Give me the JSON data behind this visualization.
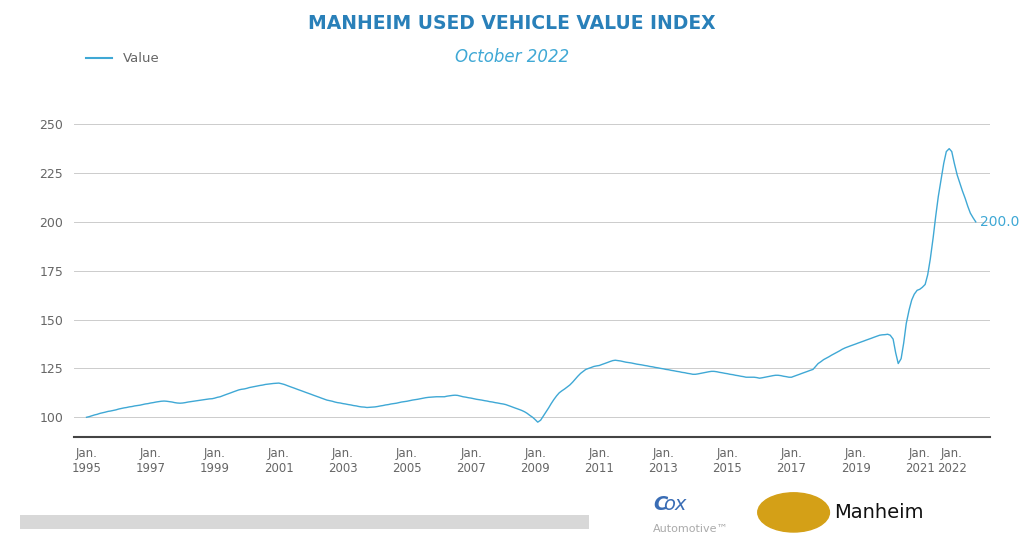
{
  "title": "MANHEIM USED VEHICLE VALUE INDEX",
  "subtitle": "October 2022",
  "title_color": "#2980b9",
  "subtitle_color": "#3fa8d5",
  "line_color": "#3fa8d5",
  "last_value": "200.0",
  "last_value_color": "#3fa8d5",
  "ylabel_values": [
    100,
    125,
    150,
    175,
    200,
    225,
    250
  ],
  "ylim": [
    90,
    262
  ],
  "xlim": [
    1994.6,
    2023.2
  ],
  "background_color": "#ffffff",
  "grid_color": "#cccccc",
  "legend_label": "Value",
  "x_tick_years": [
    1995,
    1997,
    1999,
    2001,
    2003,
    2005,
    2007,
    2009,
    2011,
    2013,
    2015,
    2017,
    2019,
    2021,
    2022
  ],
  "footer_bar_color": "#d8d8d8",
  "cox_color": "#aaaaaa",
  "cox_big_color": "#3a6db5",
  "manheim_color": "#111111",
  "series": [
    [
      1995.0,
      100.0
    ],
    [
      1995.08,
      100.3
    ],
    [
      1995.17,
      100.8
    ],
    [
      1995.25,
      101.2
    ],
    [
      1995.33,
      101.5
    ],
    [
      1995.42,
      102.0
    ],
    [
      1995.5,
      102.3
    ],
    [
      1995.58,
      102.6
    ],
    [
      1995.67,
      103.0
    ],
    [
      1995.75,
      103.2
    ],
    [
      1995.83,
      103.5
    ],
    [
      1995.92,
      103.8
    ],
    [
      1996.0,
      104.2
    ],
    [
      1996.08,
      104.5
    ],
    [
      1996.17,
      104.8
    ],
    [
      1996.25,
      105.0
    ],
    [
      1996.33,
      105.3
    ],
    [
      1996.42,
      105.5
    ],
    [
      1996.5,
      105.8
    ],
    [
      1996.58,
      106.0
    ],
    [
      1996.67,
      106.2
    ],
    [
      1996.75,
      106.5
    ],
    [
      1996.83,
      106.8
    ],
    [
      1996.92,
      107.0
    ],
    [
      1997.0,
      107.3
    ],
    [
      1997.08,
      107.5
    ],
    [
      1997.17,
      107.8
    ],
    [
      1997.25,
      108.0
    ],
    [
      1997.33,
      108.2
    ],
    [
      1997.42,
      108.3
    ],
    [
      1997.5,
      108.2
    ],
    [
      1997.58,
      108.0
    ],
    [
      1997.67,
      107.8
    ],
    [
      1997.75,
      107.5
    ],
    [
      1997.83,
      107.3
    ],
    [
      1997.92,
      107.2
    ],
    [
      1998.0,
      107.3
    ],
    [
      1998.08,
      107.5
    ],
    [
      1998.17,
      107.8
    ],
    [
      1998.25,
      108.0
    ],
    [
      1998.33,
      108.2
    ],
    [
      1998.42,
      108.4
    ],
    [
      1998.5,
      108.6
    ],
    [
      1998.58,
      108.8
    ],
    [
      1998.67,
      109.0
    ],
    [
      1998.75,
      109.2
    ],
    [
      1998.83,
      109.4
    ],
    [
      1998.92,
      109.5
    ],
    [
      1999.0,
      109.8
    ],
    [
      1999.08,
      110.2
    ],
    [
      1999.17,
      110.5
    ],
    [
      1999.25,
      111.0
    ],
    [
      1999.33,
      111.5
    ],
    [
      1999.42,
      112.0
    ],
    [
      1999.5,
      112.5
    ],
    [
      1999.58,
      113.0
    ],
    [
      1999.67,
      113.5
    ],
    [
      1999.75,
      114.0
    ],
    [
      1999.83,
      114.3
    ],
    [
      1999.92,
      114.5
    ],
    [
      2000.0,
      114.8
    ],
    [
      2000.08,
      115.2
    ],
    [
      2000.17,
      115.5
    ],
    [
      2000.25,
      115.8
    ],
    [
      2000.33,
      116.0
    ],
    [
      2000.42,
      116.3
    ],
    [
      2000.5,
      116.5
    ],
    [
      2000.58,
      116.8
    ],
    [
      2000.67,
      117.0
    ],
    [
      2000.75,
      117.2
    ],
    [
      2000.83,
      117.3
    ],
    [
      2000.92,
      117.4
    ],
    [
      2001.0,
      117.5
    ],
    [
      2001.08,
      117.2
    ],
    [
      2001.17,
      116.8
    ],
    [
      2001.25,
      116.3
    ],
    [
      2001.33,
      115.8
    ],
    [
      2001.42,
      115.3
    ],
    [
      2001.5,
      114.8
    ],
    [
      2001.58,
      114.3
    ],
    [
      2001.67,
      113.8
    ],
    [
      2001.75,
      113.3
    ],
    [
      2001.83,
      112.8
    ],
    [
      2001.92,
      112.3
    ],
    [
      2002.0,
      111.8
    ],
    [
      2002.08,
      111.3
    ],
    [
      2002.17,
      110.8
    ],
    [
      2002.25,
      110.3
    ],
    [
      2002.33,
      109.8
    ],
    [
      2002.42,
      109.3
    ],
    [
      2002.5,
      108.8
    ],
    [
      2002.58,
      108.5
    ],
    [
      2002.67,
      108.2
    ],
    [
      2002.75,
      107.8
    ],
    [
      2002.83,
      107.5
    ],
    [
      2002.92,
      107.3
    ],
    [
      2003.0,
      107.0
    ],
    [
      2003.08,
      106.8
    ],
    [
      2003.17,
      106.5
    ],
    [
      2003.25,
      106.3
    ],
    [
      2003.33,
      106.0
    ],
    [
      2003.42,
      105.8
    ],
    [
      2003.5,
      105.5
    ],
    [
      2003.58,
      105.3
    ],
    [
      2003.67,
      105.2
    ],
    [
      2003.75,
      105.0
    ],
    [
      2003.83,
      105.1
    ],
    [
      2003.92,
      105.2
    ],
    [
      2004.0,
      105.3
    ],
    [
      2004.08,
      105.5
    ],
    [
      2004.17,
      105.8
    ],
    [
      2004.25,
      106.0
    ],
    [
      2004.33,
      106.3
    ],
    [
      2004.42,
      106.5
    ],
    [
      2004.5,
      106.8
    ],
    [
      2004.58,
      107.0
    ],
    [
      2004.67,
      107.2
    ],
    [
      2004.75,
      107.5
    ],
    [
      2004.83,
      107.8
    ],
    [
      2004.92,
      108.0
    ],
    [
      2005.0,
      108.2
    ],
    [
      2005.08,
      108.5
    ],
    [
      2005.17,
      108.8
    ],
    [
      2005.25,
      109.0
    ],
    [
      2005.33,
      109.2
    ],
    [
      2005.42,
      109.5
    ],
    [
      2005.5,
      109.8
    ],
    [
      2005.58,
      110.0
    ],
    [
      2005.67,
      110.2
    ],
    [
      2005.75,
      110.3
    ],
    [
      2005.83,
      110.4
    ],
    [
      2005.92,
      110.5
    ],
    [
      2006.0,
      110.5
    ],
    [
      2006.08,
      110.5
    ],
    [
      2006.17,
      110.5
    ],
    [
      2006.25,
      110.8
    ],
    [
      2006.33,
      111.0
    ],
    [
      2006.42,
      111.2
    ],
    [
      2006.5,
      111.3
    ],
    [
      2006.58,
      111.2
    ],
    [
      2006.67,
      110.8
    ],
    [
      2006.75,
      110.5
    ],
    [
      2006.83,
      110.3
    ],
    [
      2006.92,
      110.0
    ],
    [
      2007.0,
      109.8
    ],
    [
      2007.08,
      109.5
    ],
    [
      2007.17,
      109.2
    ],
    [
      2007.25,
      109.0
    ],
    [
      2007.33,
      108.8
    ],
    [
      2007.42,
      108.5
    ],
    [
      2007.5,
      108.3
    ],
    [
      2007.58,
      108.0
    ],
    [
      2007.67,
      107.8
    ],
    [
      2007.75,
      107.5
    ],
    [
      2007.83,
      107.3
    ],
    [
      2007.92,
      107.0
    ],
    [
      2008.0,
      106.8
    ],
    [
      2008.08,
      106.5
    ],
    [
      2008.17,
      106.0
    ],
    [
      2008.25,
      105.5
    ],
    [
      2008.33,
      105.0
    ],
    [
      2008.42,
      104.5
    ],
    [
      2008.5,
      104.0
    ],
    [
      2008.58,
      103.5
    ],
    [
      2008.67,
      102.8
    ],
    [
      2008.75,
      102.0
    ],
    [
      2008.83,
      101.0
    ],
    [
      2008.92,
      100.0
    ],
    [
      2009.0,
      98.8
    ],
    [
      2009.08,
      97.5
    ],
    [
      2009.17,
      98.5
    ],
    [
      2009.25,
      100.5
    ],
    [
      2009.33,
      102.5
    ],
    [
      2009.42,
      104.8
    ],
    [
      2009.5,
      107.0
    ],
    [
      2009.58,
      109.0
    ],
    [
      2009.67,
      111.0
    ],
    [
      2009.75,
      112.5
    ],
    [
      2009.83,
      113.5
    ],
    [
      2009.92,
      114.5
    ],
    [
      2010.0,
      115.5
    ],
    [
      2010.08,
      116.5
    ],
    [
      2010.17,
      118.0
    ],
    [
      2010.25,
      119.5
    ],
    [
      2010.33,
      121.0
    ],
    [
      2010.42,
      122.5
    ],
    [
      2010.5,
      123.5
    ],
    [
      2010.58,
      124.5
    ],
    [
      2010.67,
      125.0
    ],
    [
      2010.75,
      125.5
    ],
    [
      2010.83,
      126.0
    ],
    [
      2010.92,
      126.3
    ],
    [
      2011.0,
      126.5
    ],
    [
      2011.08,
      127.0
    ],
    [
      2011.17,
      127.5
    ],
    [
      2011.25,
      128.0
    ],
    [
      2011.33,
      128.5
    ],
    [
      2011.42,
      129.0
    ],
    [
      2011.5,
      129.2
    ],
    [
      2011.58,
      129.0
    ],
    [
      2011.67,
      128.8
    ],
    [
      2011.75,
      128.5
    ],
    [
      2011.83,
      128.2
    ],
    [
      2011.92,
      128.0
    ],
    [
      2012.0,
      127.8
    ],
    [
      2012.08,
      127.5
    ],
    [
      2012.17,
      127.2
    ],
    [
      2012.25,
      127.0
    ],
    [
      2012.33,
      126.8
    ],
    [
      2012.42,
      126.5
    ],
    [
      2012.5,
      126.3
    ],
    [
      2012.58,
      126.0
    ],
    [
      2012.67,
      125.8
    ],
    [
      2012.75,
      125.5
    ],
    [
      2012.83,
      125.3
    ],
    [
      2012.92,
      125.0
    ],
    [
      2013.0,
      124.8
    ],
    [
      2013.08,
      124.5
    ],
    [
      2013.17,
      124.3
    ],
    [
      2013.25,
      124.0
    ],
    [
      2013.33,
      123.8
    ],
    [
      2013.42,
      123.5
    ],
    [
      2013.5,
      123.3
    ],
    [
      2013.58,
      123.0
    ],
    [
      2013.67,
      122.8
    ],
    [
      2013.75,
      122.5
    ],
    [
      2013.83,
      122.3
    ],
    [
      2013.92,
      122.0
    ],
    [
      2014.0,
      122.0
    ],
    [
      2014.08,
      122.2
    ],
    [
      2014.17,
      122.5
    ],
    [
      2014.25,
      122.8
    ],
    [
      2014.33,
      123.0
    ],
    [
      2014.42,
      123.3
    ],
    [
      2014.5,
      123.5
    ],
    [
      2014.58,
      123.5
    ],
    [
      2014.67,
      123.3
    ],
    [
      2014.75,
      123.0
    ],
    [
      2014.83,
      122.8
    ],
    [
      2014.92,
      122.5
    ],
    [
      2015.0,
      122.3
    ],
    [
      2015.08,
      122.0
    ],
    [
      2015.17,
      121.8
    ],
    [
      2015.25,
      121.5
    ],
    [
      2015.33,
      121.3
    ],
    [
      2015.42,
      121.0
    ],
    [
      2015.5,
      120.8
    ],
    [
      2015.58,
      120.5
    ],
    [
      2015.67,
      120.5
    ],
    [
      2015.75,
      120.5
    ],
    [
      2015.83,
      120.5
    ],
    [
      2015.92,
      120.3
    ],
    [
      2016.0,
      120.0
    ],
    [
      2016.08,
      120.2
    ],
    [
      2016.17,
      120.5
    ],
    [
      2016.25,
      120.8
    ],
    [
      2016.33,
      121.0
    ],
    [
      2016.42,
      121.3
    ],
    [
      2016.5,
      121.5
    ],
    [
      2016.58,
      121.5
    ],
    [
      2016.67,
      121.3
    ],
    [
      2016.75,
      121.0
    ],
    [
      2016.83,
      120.8
    ],
    [
      2016.92,
      120.5
    ],
    [
      2017.0,
      120.5
    ],
    [
      2017.08,
      121.0
    ],
    [
      2017.17,
      121.5
    ],
    [
      2017.25,
      122.0
    ],
    [
      2017.33,
      122.5
    ],
    [
      2017.42,
      123.0
    ],
    [
      2017.5,
      123.5
    ],
    [
      2017.58,
      124.0
    ],
    [
      2017.67,
      124.5
    ],
    [
      2017.75,
      126.0
    ],
    [
      2017.83,
      127.5
    ],
    [
      2017.92,
      128.5
    ],
    [
      2018.0,
      129.5
    ],
    [
      2018.08,
      130.2
    ],
    [
      2018.17,
      131.0
    ],
    [
      2018.25,
      131.8
    ],
    [
      2018.33,
      132.5
    ],
    [
      2018.42,
      133.3
    ],
    [
      2018.5,
      134.0
    ],
    [
      2018.58,
      134.8
    ],
    [
      2018.67,
      135.5
    ],
    [
      2018.75,
      136.0
    ],
    [
      2018.83,
      136.5
    ],
    [
      2018.92,
      137.0
    ],
    [
      2019.0,
      137.5
    ],
    [
      2019.08,
      138.0
    ],
    [
      2019.17,
      138.5
    ],
    [
      2019.25,
      139.0
    ],
    [
      2019.33,
      139.5
    ],
    [
      2019.42,
      140.0
    ],
    [
      2019.5,
      140.5
    ],
    [
      2019.58,
      141.0
    ],
    [
      2019.67,
      141.5
    ],
    [
      2019.75,
      142.0
    ],
    [
      2019.83,
      142.2
    ],
    [
      2019.92,
      142.3
    ],
    [
      2020.0,
      142.5
    ],
    [
      2020.08,
      142.0
    ],
    [
      2020.17,
      140.0
    ],
    [
      2020.25,
      133.0
    ],
    [
      2020.33,
      127.5
    ],
    [
      2020.42,
      130.0
    ],
    [
      2020.5,
      138.0
    ],
    [
      2020.58,
      148.0
    ],
    [
      2020.67,
      155.0
    ],
    [
      2020.75,
      160.0
    ],
    [
      2020.83,
      163.0
    ],
    [
      2020.92,
      165.0
    ],
    [
      2021.0,
      165.5
    ],
    [
      2021.08,
      166.5
    ],
    [
      2021.17,
      168.0
    ],
    [
      2021.25,
      173.0
    ],
    [
      2021.33,
      181.0
    ],
    [
      2021.42,
      192.0
    ],
    [
      2021.5,
      203.0
    ],
    [
      2021.58,
      213.0
    ],
    [
      2021.67,
      222.0
    ],
    [
      2021.75,
      230.0
    ],
    [
      2021.83,
      236.0
    ],
    [
      2021.92,
      237.5
    ],
    [
      2022.0,
      236.0
    ],
    [
      2022.08,
      230.0
    ],
    [
      2022.17,
      224.0
    ],
    [
      2022.25,
      220.0
    ],
    [
      2022.33,
      216.0
    ],
    [
      2022.42,
      212.0
    ],
    [
      2022.5,
      208.0
    ],
    [
      2022.58,
      204.5
    ],
    [
      2022.67,
      202.0
    ],
    [
      2022.75,
      200.0
    ]
  ]
}
